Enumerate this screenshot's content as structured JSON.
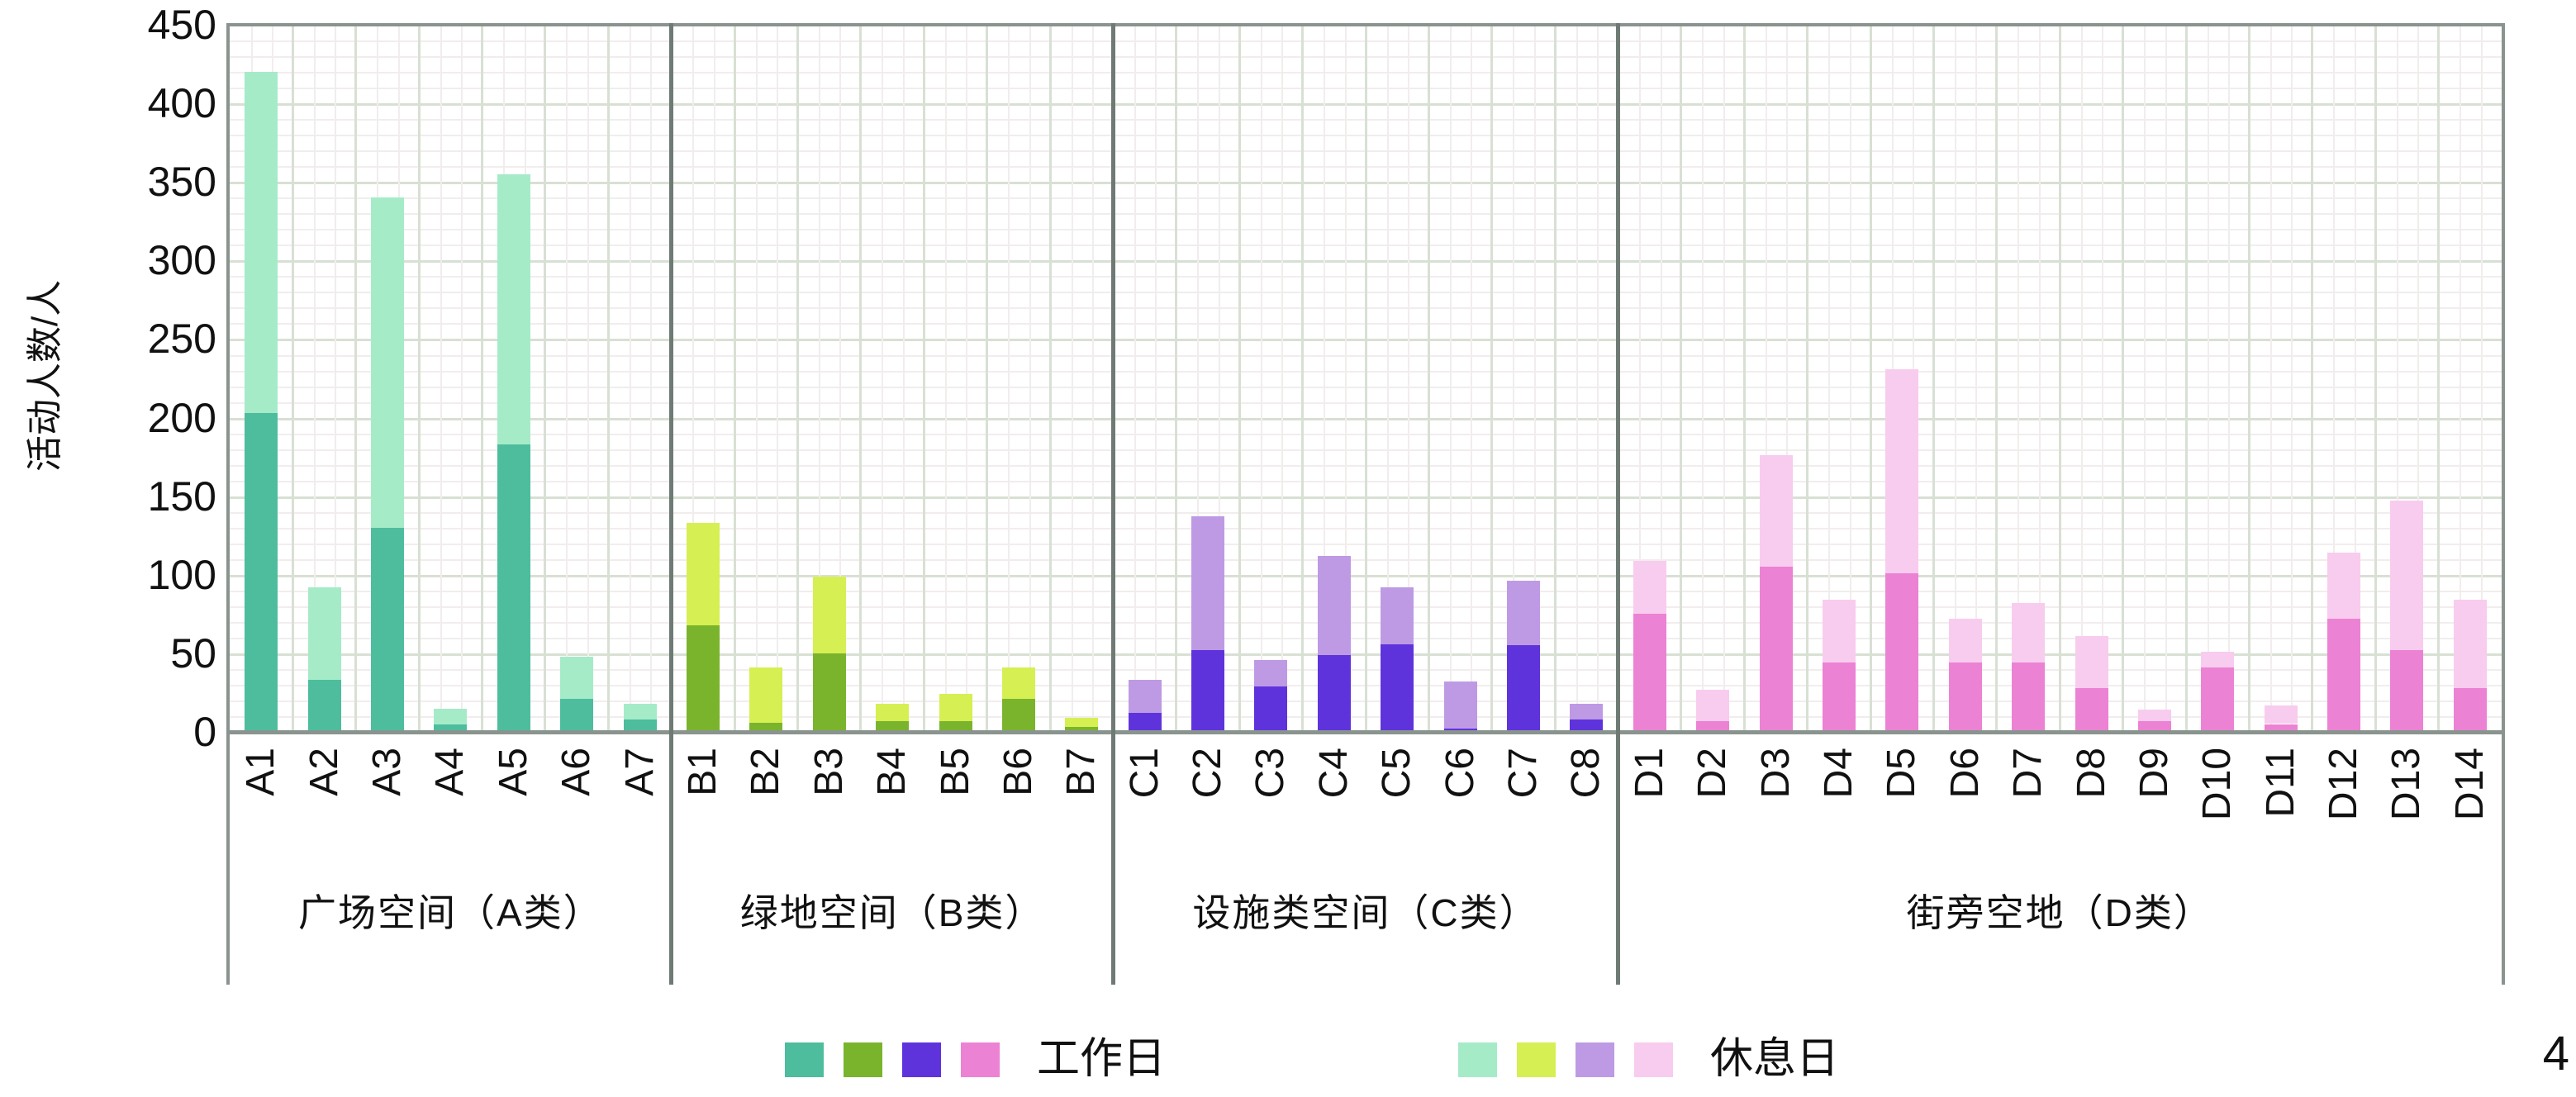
{
  "page": {
    "number": "4"
  },
  "colors": {
    "background": "#FFFFFF",
    "text": "#111111",
    "frame": "#8A948E",
    "divider": "#6F7A75",
    "grid_major": "#D8E0D4",
    "grid_minor": "#F2EDED"
  },
  "axis": {
    "y_title": "活动人数/人",
    "y_ticks": [
      0,
      50,
      100,
      150,
      200,
      250,
      300,
      350,
      400,
      450
    ]
  },
  "legend": {
    "workday": {
      "label": "工作日",
      "swatches": [
        "#4DBD9E",
        "#7AB42D",
        "#5F33DC",
        "#EC82D3"
      ]
    },
    "restday": {
      "label": "休息日",
      "swatches": [
        "#A5EBC8",
        "#D6EF52",
        "#BE9AE4",
        "#F8CCEE"
      ]
    }
  },
  "chart_data": {
    "type": "bar",
    "stacked": true,
    "title": "",
    "xlabel": "",
    "ylabel": "活动人数/人",
    "ylim": [
      0,
      450
    ],
    "grid": true,
    "series_names": [
      "工作日",
      "休息日"
    ],
    "value_semantics": "each bar = stacked segments; bottom segment = 工作日 (dark color), top segment = 休息日 (light color); bar top = workday + restday",
    "groups": [
      {
        "label": "广场空间（A类）",
        "workday_color": "#4DBD9E",
        "restday_color": "#A5EBC8",
        "bars": [
          {
            "label": "A1",
            "workday": 203,
            "restday": 217
          },
          {
            "label": "A2",
            "workday": 33,
            "restday": 59
          },
          {
            "label": "A3",
            "workday": 130,
            "restday": 210
          },
          {
            "label": "A4",
            "workday": 5,
            "restday": 10
          },
          {
            "label": "A5",
            "workday": 183,
            "restday": 172
          },
          {
            "label": "A6",
            "workday": 21,
            "restday": 27
          },
          {
            "label": "A7",
            "workday": 8,
            "restday": 10
          }
        ]
      },
      {
        "label": "绿地空间（B类）",
        "workday_color": "#7AB42D",
        "restday_color": "#D6EF52",
        "bars": [
          {
            "label": "B1",
            "workday": 68,
            "restday": 65
          },
          {
            "label": "B2",
            "workday": 6,
            "restday": 35
          },
          {
            "label": "B3",
            "workday": 50,
            "restday": 49
          },
          {
            "label": "B4",
            "workday": 7,
            "restday": 11
          },
          {
            "label": "B5",
            "workday": 7,
            "restday": 17
          },
          {
            "label": "B6",
            "workday": 21,
            "restday": 20
          },
          {
            "label": "B7",
            "workday": 3,
            "restday": 6
          }
        ]
      },
      {
        "label": "设施类空间（C类）",
        "workday_color": "#5F33DC",
        "restday_color": "#BE9AE4",
        "bars": [
          {
            "label": "C1",
            "workday": 12,
            "restday": 21
          },
          {
            "label": "C2",
            "workday": 52,
            "restday": 85
          },
          {
            "label": "C3",
            "workday": 29,
            "restday": 17
          },
          {
            "label": "C4",
            "workday": 49,
            "restday": 63
          },
          {
            "label": "C5",
            "workday": 56,
            "restday": 36
          },
          {
            "label": "C6",
            "workday": 2,
            "restday": 30
          },
          {
            "label": "C7",
            "workday": 55,
            "restday": 41
          },
          {
            "label": "C8",
            "workday": 8,
            "restday": 10
          }
        ]
      },
      {
        "label": "街旁空地（D类）",
        "workday_color": "#EC82D3",
        "restday_color": "#F8CCEE",
        "bars": [
          {
            "label": "D1",
            "workday": 75,
            "restday": 34
          },
          {
            "label": "D2",
            "workday": 7,
            "restday": 20
          },
          {
            "label": "D3",
            "workday": 105,
            "restday": 71
          },
          {
            "label": "D4",
            "workday": 44,
            "restday": 40
          },
          {
            "label": "D5",
            "workday": 101,
            "restday": 130
          },
          {
            "label": "D6",
            "workday": 44,
            "restday": 28
          },
          {
            "label": "D7",
            "workday": 44,
            "restday": 38
          },
          {
            "label": "D8",
            "workday": 28,
            "restday": 33
          },
          {
            "label": "D9",
            "workday": 7,
            "restday": 7
          },
          {
            "label": "D10",
            "workday": 41,
            "restday": 10
          },
          {
            "label": "D11",
            "workday": 5,
            "restday": 12
          },
          {
            "label": "D12",
            "workday": 72,
            "restday": 42
          },
          {
            "label": "D13",
            "workday": 52,
            "restday": 95
          },
          {
            "label": "D14",
            "workday": 28,
            "restday": 56
          }
        ]
      }
    ]
  }
}
